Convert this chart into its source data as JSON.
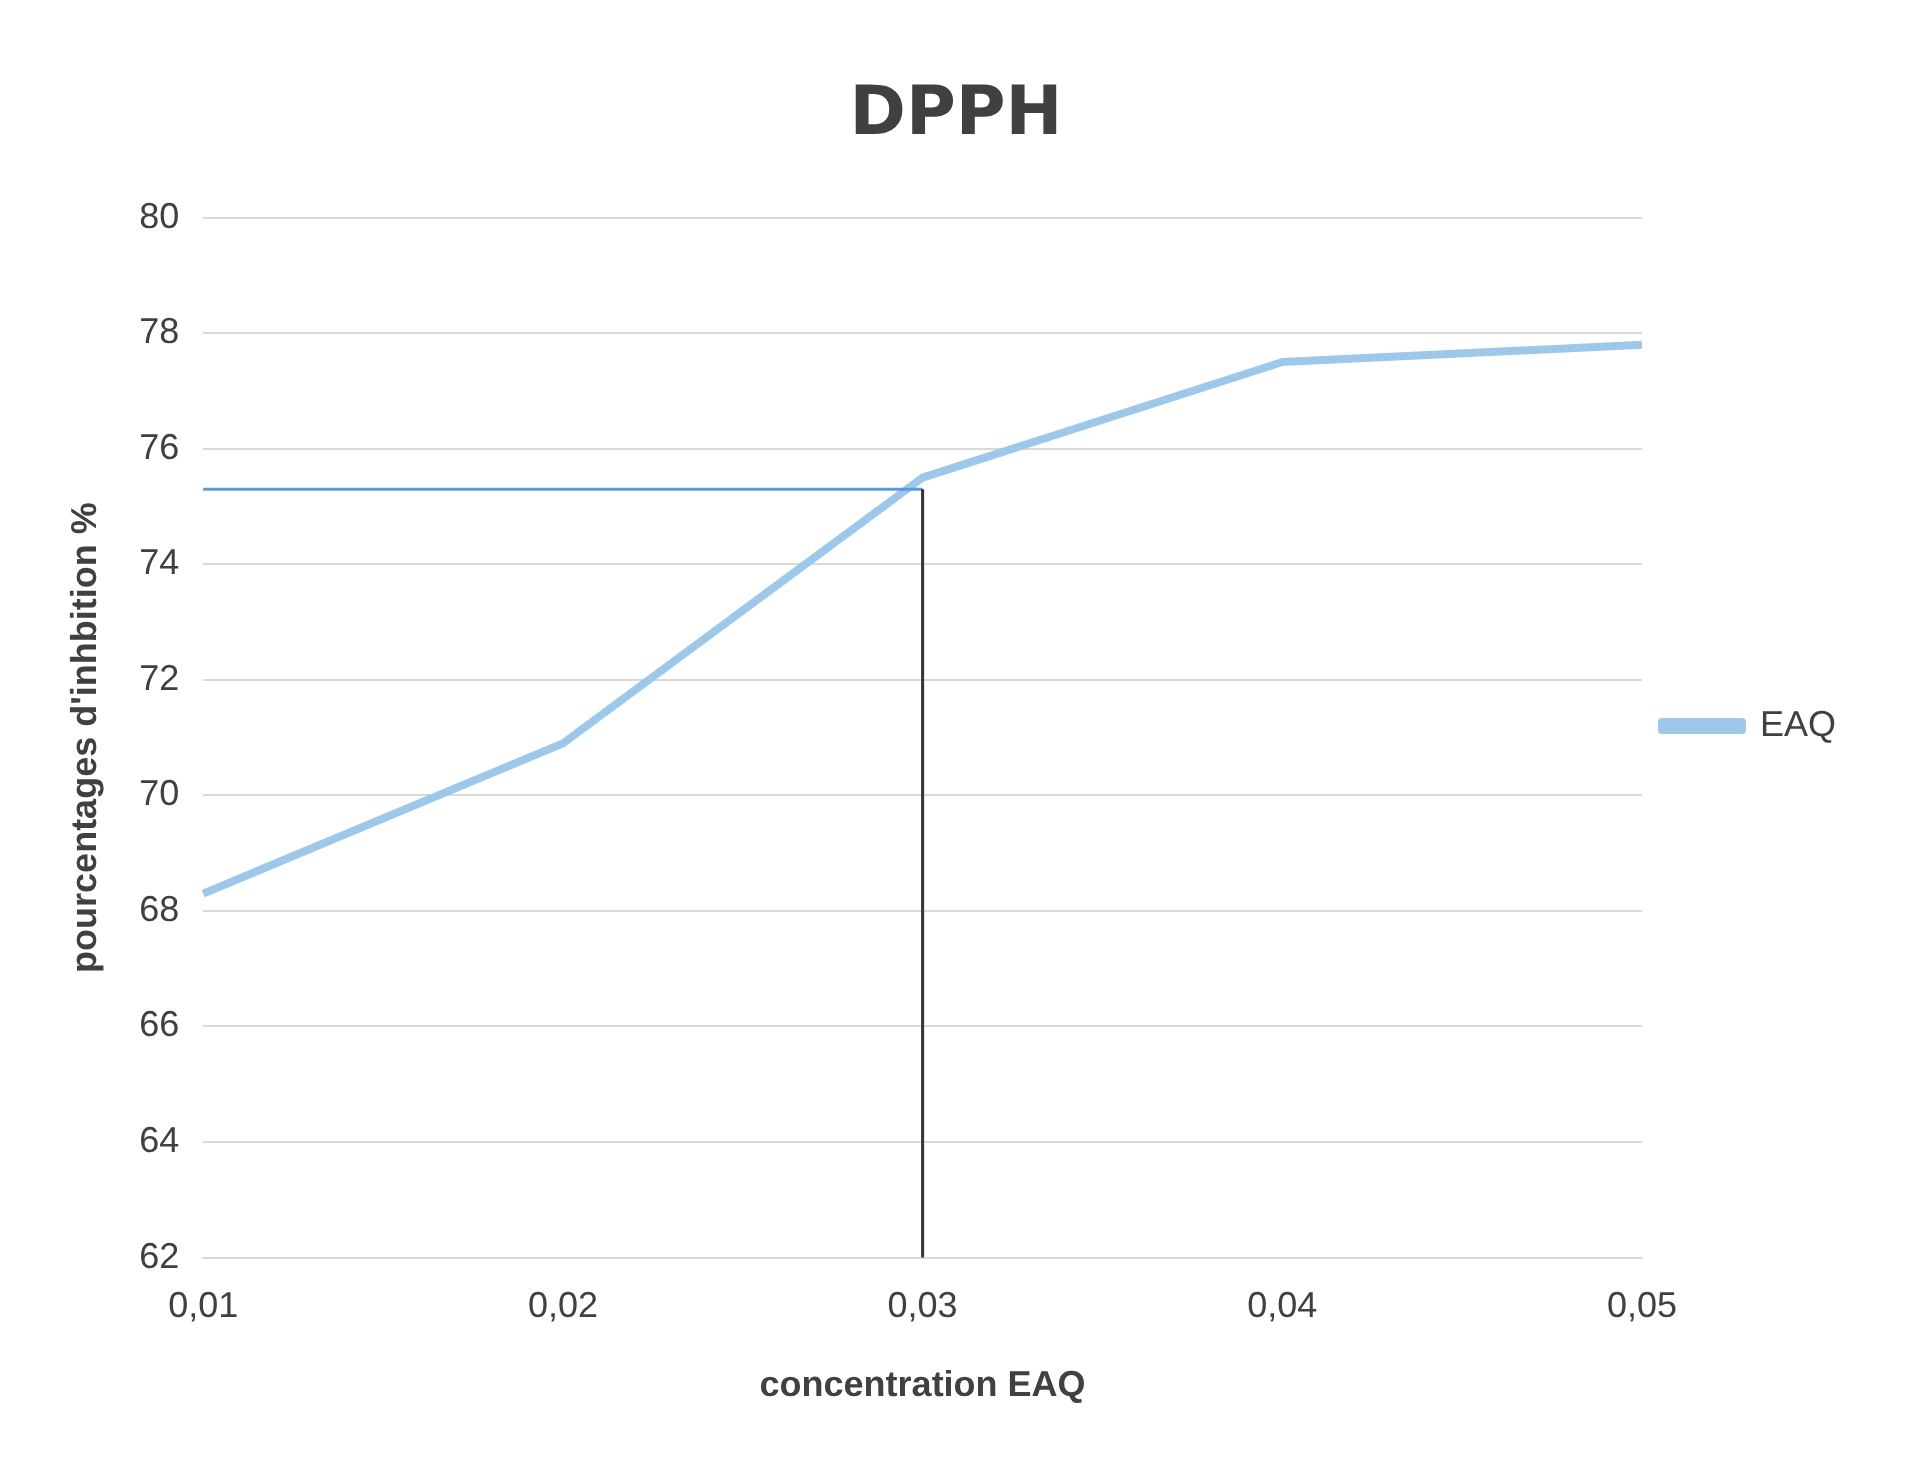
{
  "chart_data": {
    "type": "line",
    "title": "DPPH",
    "xlabel": "concentration EAQ",
    "ylabel": "pourcentages d'inhbition %",
    "categories": [
      "0,01",
      "0,02",
      "0,03",
      "0,04",
      "0,05"
    ],
    "series": [
      {
        "name": "EAQ",
        "color": "#9dc8ea",
        "values": [
          68.3,
          70.9,
          75.5,
          77.5,
          77.8
        ]
      }
    ],
    "ylim": [
      62,
      80
    ],
    "yticks": [
      62,
      64,
      66,
      68,
      70,
      72,
      74,
      76,
      78,
      80
    ],
    "grid": "y",
    "legend": "right",
    "marker": "none",
    "line_style": "solid",
    "ref_lines": [
      {
        "axis": "y",
        "value": 75.3,
        "color": "#5b9bd5"
      },
      {
        "axis": "x",
        "value": "0,03",
        "color": "#333333"
      }
    ]
  }
}
